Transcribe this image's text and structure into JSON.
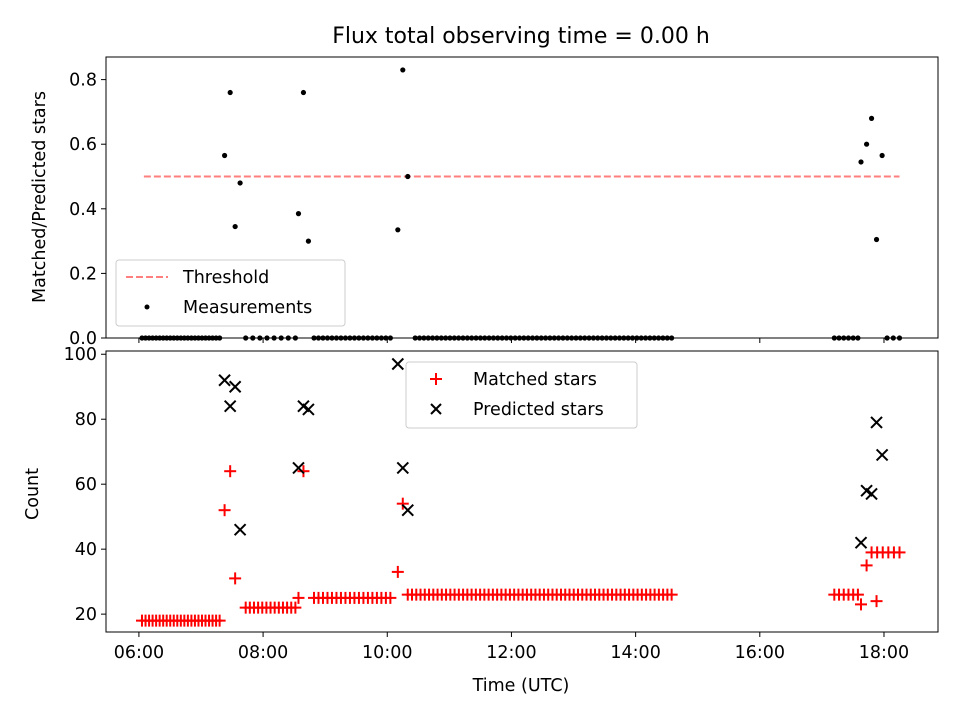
{
  "title": "Flux total observing time = 0.00 h",
  "chart_data": [
    {
      "type": "scatter",
      "panel": "top",
      "ylabel": "Matched/Predicted stars",
      "ylim": [
        0,
        0.87
      ],
      "yticks": [
        0.0,
        0.2,
        0.4,
        0.6,
        0.8
      ],
      "ytick_labels": [
        "0.0",
        "0.2",
        "0.4",
        "0.6",
        "0.8"
      ],
      "xlim_hours": [
        5.47,
        18.87
      ],
      "legend_position": "lower-left",
      "threshold": {
        "name": "Threshold",
        "value": 0.5,
        "x_start": 6.08,
        "x_end": 18.25,
        "color": "#ff7f7f",
        "style": "dashed"
      },
      "series": [
        {
          "name": "Measurements",
          "color": "#000000",
          "marker": "dot",
          "points": [
            [
              7.38,
              0.565
            ],
            [
              7.47,
              0.76
            ],
            [
              7.55,
              0.345
            ],
            [
              7.63,
              0.48
            ],
            [
              8.57,
              0.385
            ],
            [
              8.65,
              0.76
            ],
            [
              8.73,
              0.3
            ],
            [
              10.17,
              0.335
            ],
            [
              10.25,
              0.83
            ],
            [
              10.33,
              0.5
            ],
            [
              17.63,
              0.545
            ],
            [
              17.72,
              0.6
            ],
            [
              17.8,
              0.68
            ],
            [
              17.88,
              0.305
            ],
            [
              17.97,
              0.565
            ]
          ],
          "zero_ranges": [
            [
              6.05,
              7.3,
              23
            ],
            [
              7.72,
              8.52,
              8
            ],
            [
              8.82,
              10.05,
              18
            ],
            [
              10.45,
              14.58,
              60
            ],
            [
              17.2,
              17.58,
              6
            ],
            [
              18.05,
              18.25,
              3
            ]
          ]
        }
      ]
    },
    {
      "type": "scatter",
      "panel": "bottom",
      "xlabel": "Time (UTC)",
      "ylabel": "Count",
      "ylim": [
        14.5,
        101
      ],
      "yticks": [
        20,
        40,
        60,
        80,
        100
      ],
      "ytick_labels": [
        "20",
        "40",
        "60",
        "80",
        "100"
      ],
      "xlim_hours": [
        5.47,
        18.87
      ],
      "xticks_hours": [
        6,
        8,
        10,
        12,
        14,
        16,
        18
      ],
      "xtick_labels": [
        "06:00",
        "08:00",
        "10:00",
        "12:00",
        "14:00",
        "16:00",
        "18:00"
      ],
      "legend_position": "upper-center",
      "series": [
        {
          "name": "Matched stars",
          "color": "#ff0000",
          "marker": "plus",
          "points": [
            [
              7.38,
              52
            ],
            [
              7.47,
              64
            ],
            [
              7.55,
              31
            ],
            [
              8.65,
              64
            ],
            [
              10.17,
              33
            ],
            [
              10.25,
              54
            ],
            [
              17.63,
              23
            ],
            [
              17.72,
              35
            ],
            [
              17.88,
              24
            ]
          ],
          "flat_ranges": [
            [
              6.05,
              7.3,
              23,
              18
            ],
            [
              7.72,
              8.52,
              13,
              22
            ],
            [
              8.57,
              8.57,
              1,
              25
            ],
            [
              8.82,
              10.05,
              18,
              25
            ],
            [
              10.33,
              14.58,
              63,
              26
            ],
            [
              17.2,
              17.58,
              6,
              26
            ],
            [
              17.8,
              18.25,
              6,
              39
            ]
          ]
        },
        {
          "name": "Predicted stars",
          "color": "#000000",
          "marker": "x",
          "points": [
            [
              7.38,
              92
            ],
            [
              7.47,
              84
            ],
            [
              7.55,
              90
            ],
            [
              7.63,
              46
            ],
            [
              8.57,
              65
            ],
            [
              8.65,
              84
            ],
            [
              8.73,
              83
            ],
            [
              10.17,
              97
            ],
            [
              10.25,
              65
            ],
            [
              10.33,
              52
            ],
            [
              17.63,
              42
            ],
            [
              17.72,
              58
            ],
            [
              17.8,
              57
            ],
            [
              17.88,
              79
            ],
            [
              17.97,
              69
            ]
          ]
        }
      ]
    }
  ]
}
